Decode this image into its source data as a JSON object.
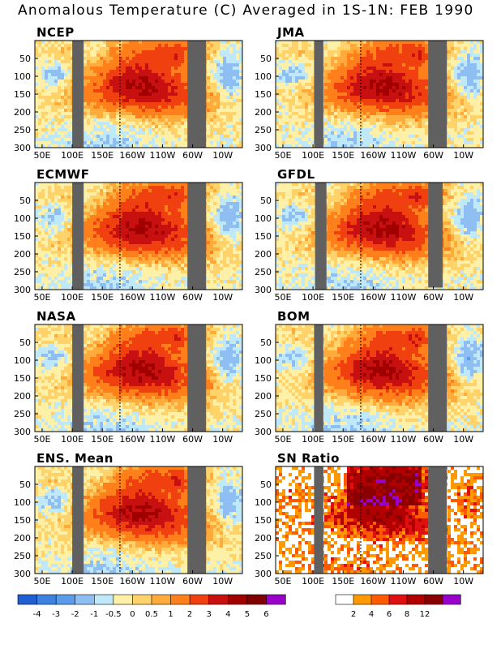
{
  "title": "Anomalous Temperature (C) Averaged in 1S-1N: FEB 1990",
  "x_tick_labels": [
    "50E",
    "100E",
    "150E",
    "160W",
    "110W",
    "60W",
    "10W"
  ],
  "y_tick_labels": [
    "50",
    "100",
    "150",
    "200",
    "250",
    "300"
  ],
  "anomaly_colorbar": {
    "labels": [
      "-4",
      "-3",
      "-2",
      "-1",
      "-0.5",
      "0",
      "0.5",
      "1",
      "2",
      "3",
      "4",
      "5",
      "6"
    ],
    "colors": [
      "#1f5fd1",
      "#3c82e0",
      "#5b9cea",
      "#8fbff2",
      "#bfe8f8",
      "#fff0a8",
      "#ffd36a",
      "#ffab3c",
      "#ff7f1a",
      "#f04010",
      "#c81010",
      "#a00000",
      "#800000",
      "#9900c8"
    ]
  },
  "sn_colorbar": {
    "labels": [
      "2",
      "4",
      "6",
      "8",
      "12"
    ],
    "colors": [
      "#ffffff",
      "#ff9900",
      "#ff5a00",
      "#e01010",
      "#b00000",
      "#8a0000",
      "#9900cc"
    ]
  },
  "chart_data": [
    {
      "type": "heatmap",
      "title": "NCEP",
      "x": [
        "50E",
        "100E",
        "150E",
        "160W",
        "110W",
        "60W",
        "10W"
      ],
      "y_label_values": [
        50,
        100,
        150,
        200,
        250,
        300
      ],
      "ylim": [
        300,
        0
      ],
      "max_anomaly": 5
    },
    {
      "type": "heatmap",
      "title": "JMA",
      "x": [
        "50E",
        "100E",
        "150E",
        "160W",
        "110W",
        "60W",
        "10W"
      ],
      "y_label_values": [
        50,
        100,
        150,
        200,
        250,
        300
      ],
      "ylim": [
        300,
        0
      ],
      "max_anomaly": 6
    },
    {
      "type": "heatmap",
      "title": "ECMWF",
      "x": [
        "50E",
        "100E",
        "150E",
        "160W",
        "110W",
        "60W",
        "10W"
      ],
      "y_label_values": [
        50,
        100,
        150,
        200,
        250,
        300
      ],
      "ylim": [
        300,
        0
      ],
      "max_anomaly": 6
    },
    {
      "type": "heatmap",
      "title": "GFDL",
      "x": [
        "50E",
        "100E",
        "150E",
        "160W",
        "110W",
        "60W",
        "10W"
      ],
      "y_label_values": [
        50,
        100,
        150,
        200,
        250,
        300
      ],
      "ylim": [
        300,
        0
      ],
      "max_anomaly": 6
    },
    {
      "type": "heatmap",
      "title": "NASA",
      "x": [
        "50E",
        "100E",
        "150E",
        "160W",
        "110W",
        "60W",
        "10W"
      ],
      "y_label_values": [
        50,
        100,
        150,
        200,
        250,
        300
      ],
      "ylim": [
        300,
        0
      ],
      "max_anomaly": 6
    },
    {
      "type": "heatmap",
      "title": "BOM",
      "x": [
        "50E",
        "100E",
        "150E",
        "160W",
        "110W",
        "60W",
        "10W"
      ],
      "y_label_values": [
        50,
        100,
        150,
        200,
        250,
        300
      ],
      "ylim": [
        300,
        0
      ],
      "max_anomaly": 6
    },
    {
      "type": "heatmap",
      "title": "ENS. Mean",
      "x": [
        "50E",
        "100E",
        "150E",
        "160W",
        "110W",
        "60W",
        "10W"
      ],
      "y_label_values": [
        50,
        100,
        150,
        200,
        250,
        300
      ],
      "ylim": [
        300,
        0
      ],
      "max_anomaly": 5
    },
    {
      "type": "heatmap",
      "title": "SN Ratio",
      "x": [
        "50E",
        "100E",
        "150E",
        "160W",
        "110W",
        "60W",
        "10W"
      ],
      "y_label_values": [
        50,
        100,
        150,
        200,
        250,
        300
      ],
      "ylim": [
        300,
        0
      ],
      "max_anomaly": 12
    }
  ]
}
